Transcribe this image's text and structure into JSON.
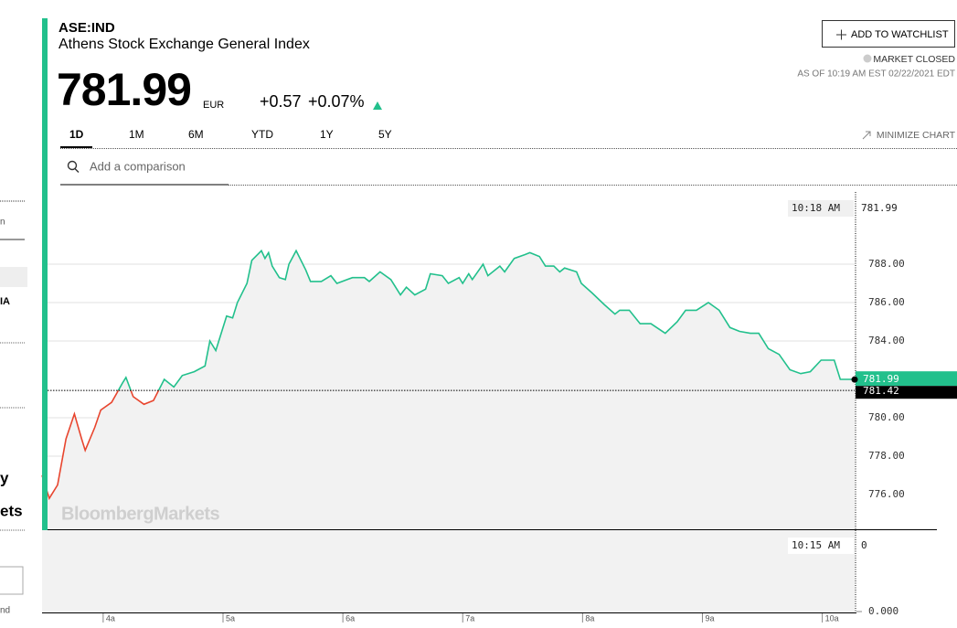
{
  "sidebar": {
    "fragments": [
      "n",
      "IA",
      "y",
      "ets",
      "nd"
    ]
  },
  "header": {
    "symbol": "ASE:IND",
    "name": "Athens Stock Exchange General Index",
    "price": "781.99",
    "currency": "EUR",
    "change": "+0.57",
    "change_pct": "+0.07%",
    "watchlist_button": "ADD TO WATCHLIST",
    "market_status": "MARKET CLOSED",
    "as_of": "AS OF 10:19 AM EST 02/22/2021 EDT",
    "tabs": [
      "1D",
      "1M",
      "6M",
      "YTD",
      "1Y",
      "5Y"
    ],
    "minimize": "MINIMIZE CHART",
    "search_placeholder": "Add a comparison"
  },
  "chart_data": {
    "type": "line",
    "watermark": "BloombergMarkets",
    "x": [
      3.49,
      3.55,
      3.62,
      3.69,
      3.76,
      3.82,
      3.85,
      3.93,
      3.98,
      4.07,
      4.16,
      4.19,
      4.25,
      4.34,
      4.42,
      4.51,
      4.59,
      4.66,
      4.76,
      4.85,
      4.89,
      4.94,
      5.03,
      5.08,
      5.12,
      5.2,
      5.24,
      5.32,
      5.35,
      5.38,
      5.41,
      5.47,
      5.52,
      5.55,
      5.61,
      5.69,
      5.73,
      5.82,
      5.9,
      5.95,
      6.08,
      6.18,
      6.22,
      6.31,
      6.4,
      6.48,
      6.53,
      6.6,
      6.69,
      6.73,
      6.83,
      6.88,
      6.97,
      7.0,
      7.05,
      7.08,
      7.17,
      7.21,
      7.31,
      7.35,
      7.43,
      7.52,
      7.56,
      7.64,
      7.69,
      7.76,
      7.81,
      7.85,
      7.95,
      7.99,
      8.08,
      8.18,
      8.27,
      8.31,
      8.39,
      8.48,
      8.57,
      8.69,
      8.79,
      8.86,
      8.95,
      9.05,
      9.14,
      9.23,
      9.31,
      9.4,
      9.47,
      9.55,
      9.64,
      9.73,
      9.82,
      9.9,
      9.99,
      10.1,
      10.15,
      10.27
    ],
    "values": [
      777.0,
      775.8,
      776.5,
      778.9,
      780.2,
      778.9,
      778.3,
      779.5,
      780.4,
      780.8,
      781.8,
      782.1,
      781.1,
      780.7,
      780.9,
      782.0,
      781.6,
      782.2,
      782.4,
      782.7,
      784.0,
      783.5,
      785.3,
      785.2,
      786.0,
      787.0,
      788.2,
      788.7,
      788.3,
      788.6,
      787.9,
      787.3,
      787.2,
      788.0,
      788.7,
      787.7,
      787.1,
      787.1,
      787.4,
      787.0,
      787.3,
      787.3,
      787.1,
      787.6,
      787.2,
      786.4,
      786.8,
      786.4,
      786.7,
      787.5,
      787.4,
      787.0,
      787.3,
      787.0,
      787.5,
      787.2,
      788.0,
      787.4,
      787.9,
      787.6,
      788.3,
      788.5,
      788.6,
      788.4,
      787.9,
      787.9,
      787.6,
      787.8,
      787.6,
      787.0,
      786.5,
      785.9,
      785.4,
      785.6,
      785.6,
      784.9,
      784.9,
      784.4,
      785.0,
      785.6,
      785.6,
      786.0,
      785.6,
      784.7,
      784.5,
      784.4,
      784.4,
      783.6,
      783.3,
      782.5,
      782.3,
      782.4,
      783.0,
      783.0,
      782.0,
      782.0
    ],
    "color": "#22c08c",
    "down_color": "#e8452e",
    "xlim": [
      3.49,
      10.27
    ],
    "xticks": [
      {
        "value": 4,
        "label": "4a"
      },
      {
        "value": 5,
        "label": "5a"
      },
      {
        "value": 6,
        "label": "6a"
      },
      {
        "value": 7,
        "label": "7a"
      },
      {
        "value": 8,
        "label": "8a"
      },
      {
        "value": 9,
        "label": "9a"
      },
      {
        "value": 10,
        "label": "10a"
      }
    ],
    "ylim": [
      774.19,
      791.76
    ],
    "yticks": [
      {
        "value": 776,
        "label": "776.00"
      },
      {
        "value": 778,
        "label": "778.00"
      },
      {
        "value": 780,
        "label": "780.00"
      },
      {
        "value": 784,
        "label": "784.00"
      },
      {
        "value": 786,
        "label": "786.00"
      },
      {
        "value": 788,
        "label": "788.00"
      }
    ],
    "grid": true,
    "previous_close": 781.42,
    "last_value": 781.99,
    "hover_time": "10:18 AM",
    "hover_value": 781.99
  },
  "volume": {
    "hover_time": "10:15 AM",
    "hover_value": 0,
    "ytick": {
      "value": 0,
      "label": "0.000"
    }
  }
}
